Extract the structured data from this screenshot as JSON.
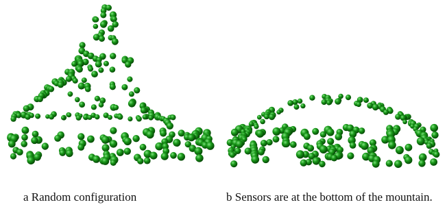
{
  "figure": {
    "panels": [
      {
        "id": "a",
        "caption": "a Random configuration"
      },
      {
        "id": "b",
        "caption": "b Sensors are at the bottom of the mountain."
      }
    ],
    "sensor_color": "#1a9a1a",
    "sensor_highlight": "#7ee07e",
    "sensor_shadow": "#064d06"
  }
}
